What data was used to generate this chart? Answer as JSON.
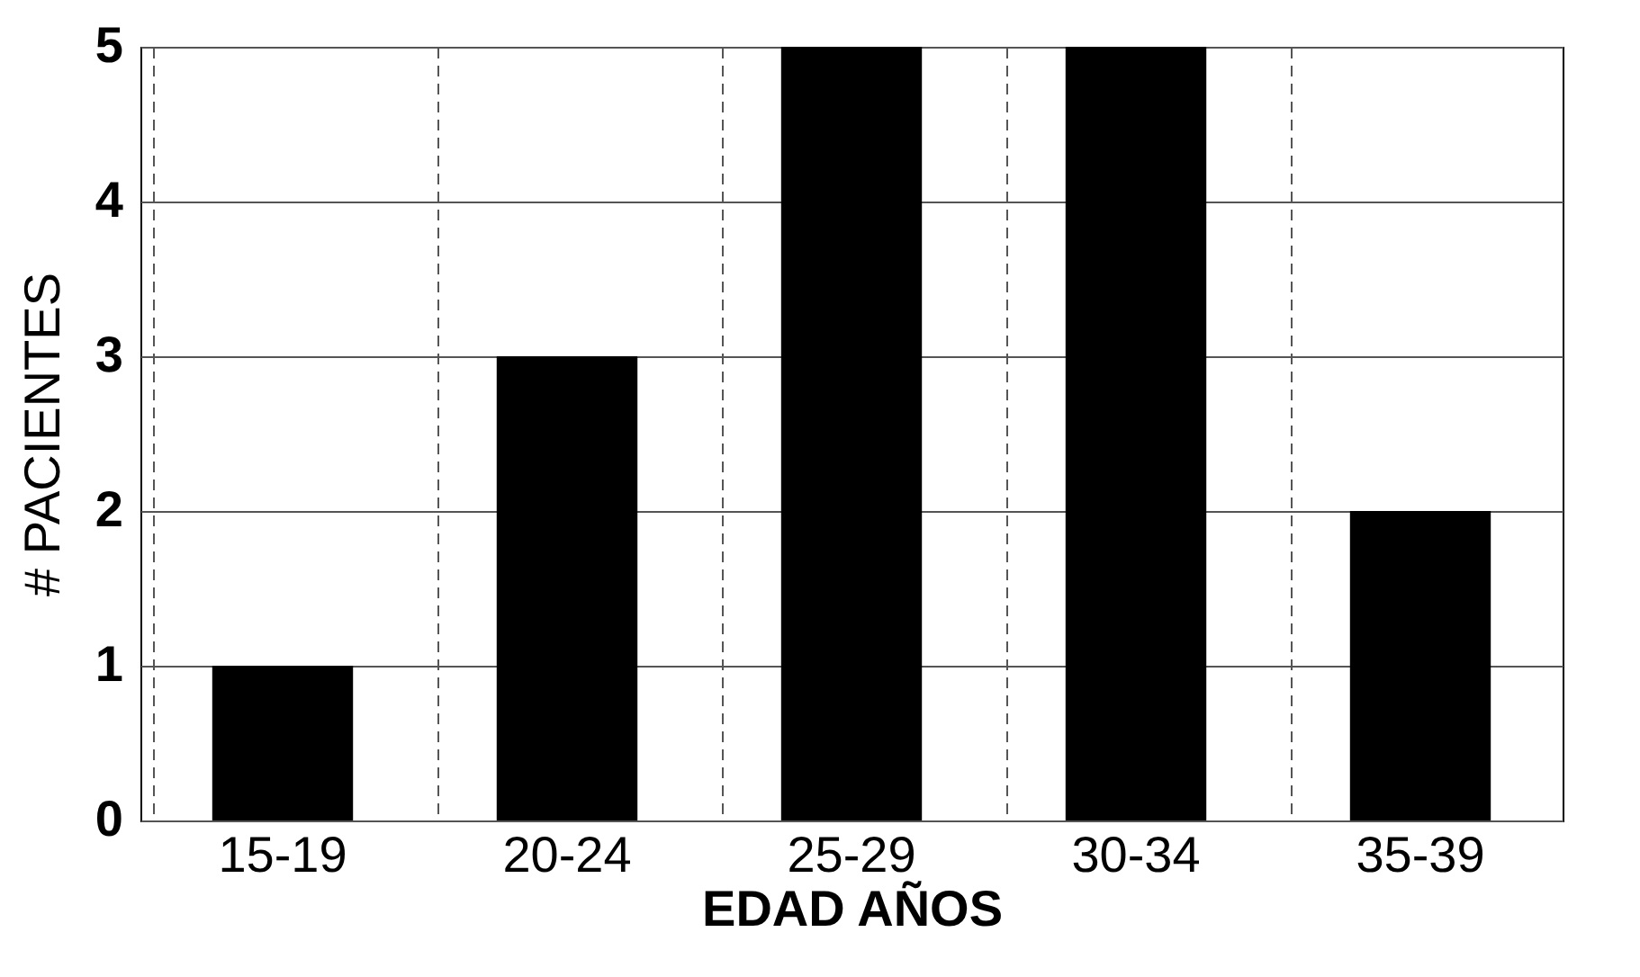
{
  "chart_data": {
    "type": "bar",
    "xlabel": "EDAD AÑOS",
    "ylabel": "# PACIENTES",
    "categories": [
      "15-19",
      "20-24",
      "25-29",
      "30-34",
      "35-39"
    ],
    "values": [
      1,
      3,
      5,
      5,
      2
    ],
    "color": "#000000",
    "ylim": [
      0,
      5
    ],
    "yticks": [
      0,
      1,
      2,
      3,
      4,
      5
    ],
    "grid": true
  }
}
